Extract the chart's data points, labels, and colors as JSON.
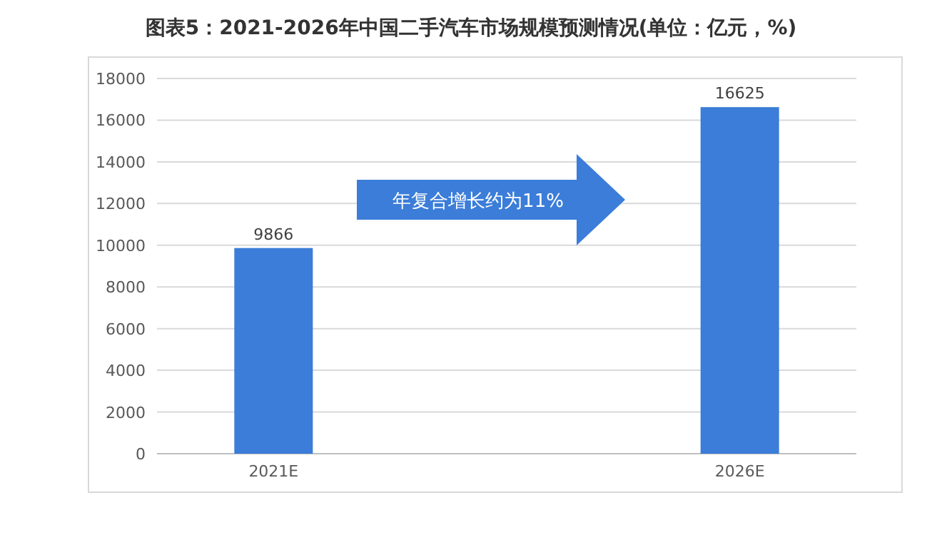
{
  "chart_data": {
    "type": "bar",
    "title": "图表5：2021-2026年中国二手汽车市场规模预测情况(单位：亿元，%)",
    "categories": [
      "2021E",
      "2026E"
    ],
    "values": [
      9866,
      16625
    ],
    "color": "#3b7dd8",
    "ylim": [
      0,
      18000
    ],
    "yticks": [
      0,
      2000,
      4000,
      6000,
      8000,
      10000,
      12000,
      14000,
      16000,
      18000
    ],
    "grid": "y",
    "data_labels": true,
    "annotations": [
      "年复合增长约为11%"
    ]
  }
}
